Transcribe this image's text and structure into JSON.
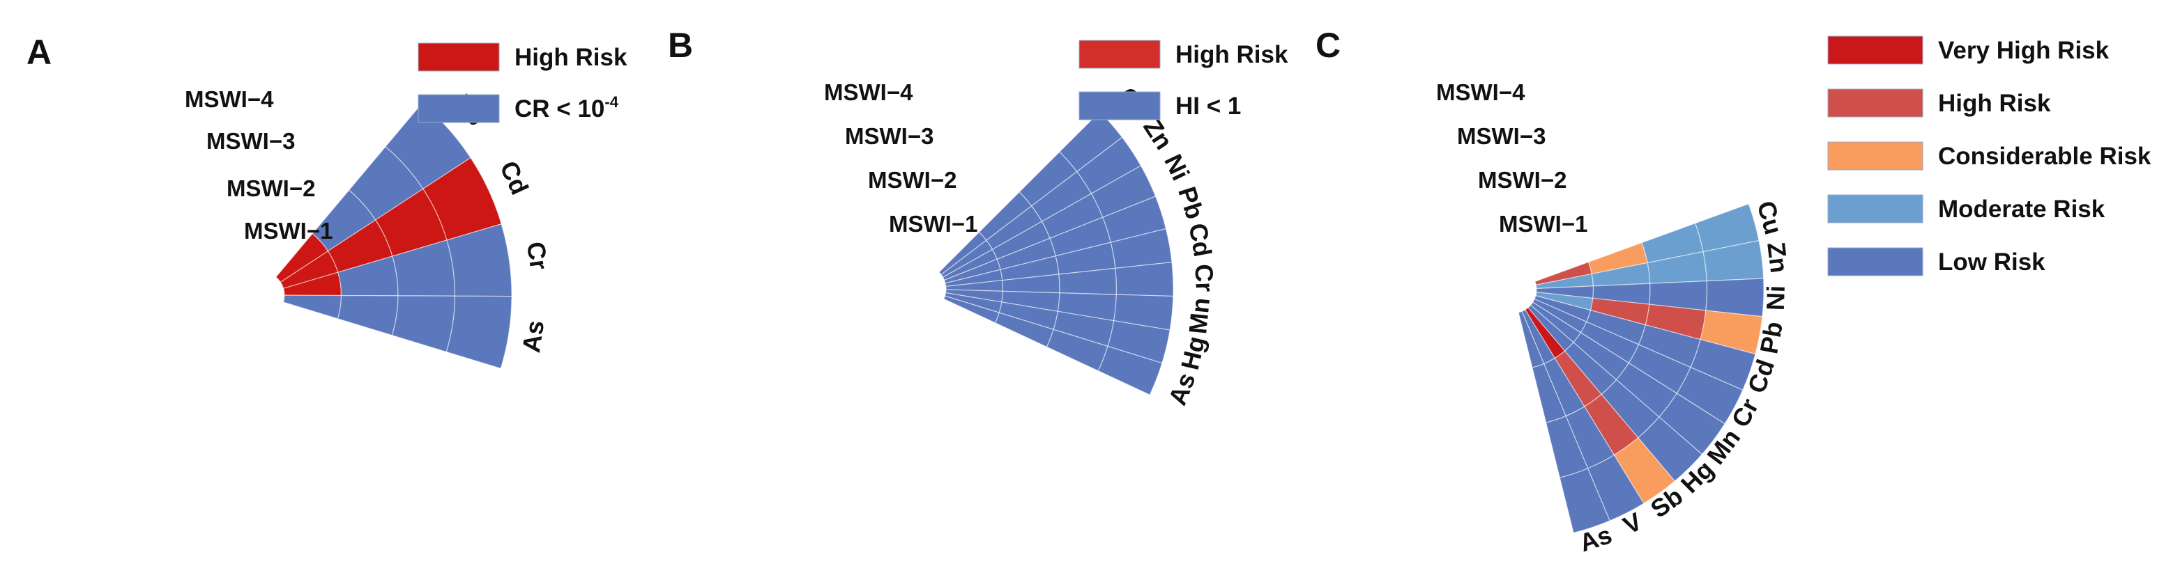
{
  "chart_data": [
    {
      "type": "polar-bar",
      "panel": "A",
      "rings": [
        "MSWI-1",
        "MSWI-2",
        "MSWI-3",
        "MSWI-4"
      ],
      "categories": [
        "Pb",
        "Cd",
        "Cr",
        "As"
      ],
      "risk_levels": [
        [
          2,
          1,
          1,
          1
        ],
        [
          2,
          2,
          2,
          2
        ],
        [
          2,
          1,
          1,
          1
        ],
        [
          1,
          1,
          1,
          1
        ]
      ],
      "legend": [
        {
          "label": "High Risk",
          "color": "#cc1714",
          "level": 2
        },
        {
          "label": "CR < 10",
          "sup": "-4",
          "color": "#5b78bd",
          "level": 1
        }
      ]
    },
    {
      "type": "polar-bar",
      "panel": "B",
      "rings": [
        "MSWI-1",
        "MSWI-2",
        "MSWI-3",
        "MSWI-4"
      ],
      "categories": [
        "Cu",
        "Zn",
        "Ni",
        "Pb",
        "Cd",
        "Cr",
        "Mn",
        "Hg",
        "As"
      ],
      "risk_levels": [
        [
          1,
          1,
          1,
          1
        ],
        [
          1,
          1,
          1,
          1
        ],
        [
          1,
          1,
          1,
          1
        ],
        [
          1,
          1,
          1,
          1
        ],
        [
          1,
          1,
          1,
          1
        ],
        [
          1,
          1,
          1,
          1
        ],
        [
          1,
          1,
          1,
          1
        ],
        [
          1,
          1,
          1,
          1
        ],
        [
          1,
          1,
          1,
          1
        ]
      ],
      "legend": [
        {
          "label": "High Risk",
          "color": "#d32f2a",
          "level": 2
        },
        {
          "label": "HI < 1",
          "color": "#5b78bd",
          "level": 1
        }
      ]
    },
    {
      "type": "polar-bar",
      "panel": "C",
      "rings": [
        "MSWI-1",
        "MSWI-2",
        "MSWI-3",
        "MSWI-4"
      ],
      "categories": [
        "Cu",
        "Zn",
        "Ni",
        "Pb",
        "Cd",
        "Cr",
        "Mn",
        "Hg",
        "Sb",
        "V",
        "As"
      ],
      "risk_levels": [
        [
          4,
          3,
          2,
          2
        ],
        [
          2,
          2,
          2,
          2
        ],
        [
          1,
          1,
          1,
          1
        ],
        [
          2,
          4,
          4,
          3
        ],
        [
          1,
          1,
          1,
          1
        ],
        [
          1,
          1,
          1,
          1
        ],
        [
          1,
          1,
          1,
          1
        ],
        [
          1,
          1,
          1,
          1
        ],
        [
          5,
          4,
          4,
          3
        ],
        [
          1,
          1,
          1,
          1
        ],
        [
          1,
          1,
          1,
          1
        ]
      ],
      "legend": [
        {
          "label": "Very High Risk",
          "color": "#c9171a",
          "level": 5
        },
        {
          "label": "High Risk",
          "color": "#cf4f4a",
          "level": 4
        },
        {
          "label": "Considerable Risk",
          "color": "#f99d5e",
          "level": 3
        },
        {
          "label": "Moderate Risk",
          "color": "#6b9fd0",
          "level": 2
        },
        {
          "label": "Low Risk",
          "color": "#5b78bd",
          "level": 1
        }
      ]
    }
  ]
}
